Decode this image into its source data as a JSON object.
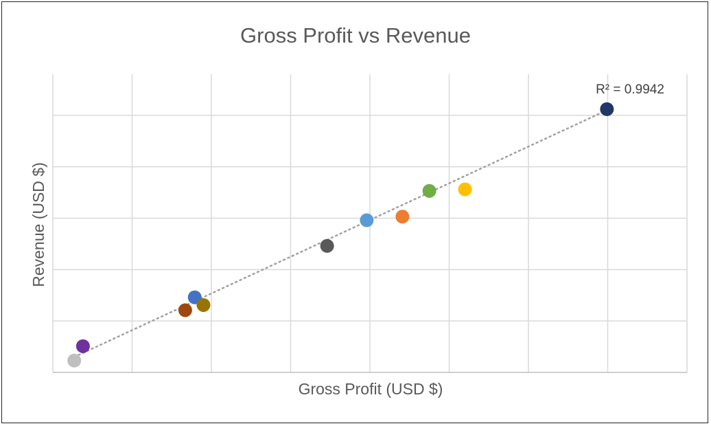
{
  "chart_data": {
    "type": "scatter",
    "title": "Gross Profit vs Revenue",
    "xlabel": "Gross Profit (USD $)",
    "ylabel": "Revenue (USD $)",
    "xlim": [
      0,
      8
    ],
    "ylim": [
      0,
      5.8
    ],
    "grid": true,
    "legend": "none",
    "tick_labels_shown": false,
    "points": [
      {
        "x": 0.27,
        "y": 0.23,
        "color": "#BFBFBF"
      },
      {
        "x": 0.38,
        "y": 0.51,
        "color": "#7030A0"
      },
      {
        "x": 1.67,
        "y": 1.21,
        "color": "#9E480E"
      },
      {
        "x": 1.79,
        "y": 1.46,
        "color": "#4472C4"
      },
      {
        "x": 1.9,
        "y": 1.31,
        "color": "#997300"
      },
      {
        "x": 3.46,
        "y": 2.46,
        "color": "#595959"
      },
      {
        "x": 3.96,
        "y": 2.96,
        "color": "#5B9BD5"
      },
      {
        "x": 4.41,
        "y": 3.03,
        "color": "#ED7D31"
      },
      {
        "x": 4.75,
        "y": 3.53,
        "color": "#70AD47"
      },
      {
        "x": 5.2,
        "y": 3.56,
        "color": "#FFC000"
      },
      {
        "x": 6.99,
        "y": 5.12,
        "color": "#203864"
      }
    ],
    "trendline": {
      "type": "linear",
      "x": [
        0.27,
        6.99
      ],
      "y": [
        0.3,
        5.1
      ],
      "color": "#A0A0A0",
      "style": "dotted",
      "r_squared_label": "R² = 0.9942"
    }
  }
}
